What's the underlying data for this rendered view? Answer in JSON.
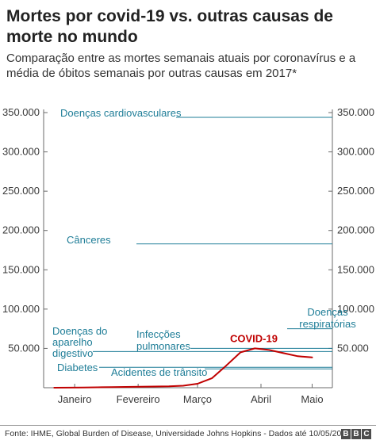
{
  "title": "Mortes por covid-19 vs. outras causas de morte no mundo",
  "subtitle": "Comparação entre as mortes semanais atuais por coronavírus e a média de óbitos semanais por outras causas em 2017*",
  "source": "Fonte: IHME, Global Burden of Disease, Universidade Johns Hopkins - Dados até 10/05/2020",
  "logo": [
    "B",
    "B",
    "C"
  ],
  "colors": {
    "covid": "#c00000",
    "cause": "#1e7d97",
    "axis": "#3a3a3a"
  },
  "chart_data": {
    "type": "line",
    "ylim": [
      0,
      350000
    ],
    "yticks": [
      50000,
      100000,
      150000,
      200000,
      250000,
      300000,
      350000
    ],
    "ytick_labels": [
      "50.000",
      "100.000",
      "150.000",
      "200.000",
      "250.000",
      "300.000",
      "350.000"
    ],
    "x_range": [
      "2020-01-01",
      "2020-05-16"
    ],
    "xticks": [
      {
        "label": "Janeiro",
        "date": "2020-01-15"
      },
      {
        "label": "Fevereiro",
        "date": "2020-02-15"
      },
      {
        "label": "Março",
        "date": "2020-03-15"
      },
      {
        "label": "Abril",
        "date": "2020-04-15"
      },
      {
        "label": "Maio",
        "date": "2020-05-10"
      }
    ],
    "series": [
      {
        "name": "COVID-19",
        "x": [
          "2020-01-05",
          "2020-01-12",
          "2020-01-19",
          "2020-01-26",
          "2020-02-02",
          "2020-02-09",
          "2020-02-16",
          "2020-02-23",
          "2020-03-01",
          "2020-03-08",
          "2020-03-15",
          "2020-03-22",
          "2020-03-29",
          "2020-04-05",
          "2020-04-12",
          "2020-04-19",
          "2020-04-26",
          "2020-05-03",
          "2020-05-10"
        ],
        "y": [
          0,
          100,
          300,
          500,
          800,
          1000,
          1200,
          1500,
          1800,
          2500,
          5000,
          12000,
          28000,
          45000,
          50000,
          48000,
          44000,
          40000,
          38500
        ]
      }
    ],
    "reference_lines": [
      {
        "label": [
          "Doenças cardiovasculares"
        ],
        "value": 344000
      },
      {
        "label": [
          "Cânceres"
        ],
        "value": 183000
      },
      {
        "label": [
          "Doenças",
          "respiratórias"
        ],
        "value": 75000
      },
      {
        "label": [
          "Doenças do",
          "aparelho",
          "digestivo"
        ],
        "value": 46000
      },
      {
        "label": [
          "Infecções",
          "pulmonares"
        ],
        "value": 50000
      },
      {
        "label": [
          "Diabetes"
        ],
        "value": 26000
      },
      {
        "label": [
          "Acidentes de trânsito"
        ],
        "value": 24000
      }
    ]
  }
}
